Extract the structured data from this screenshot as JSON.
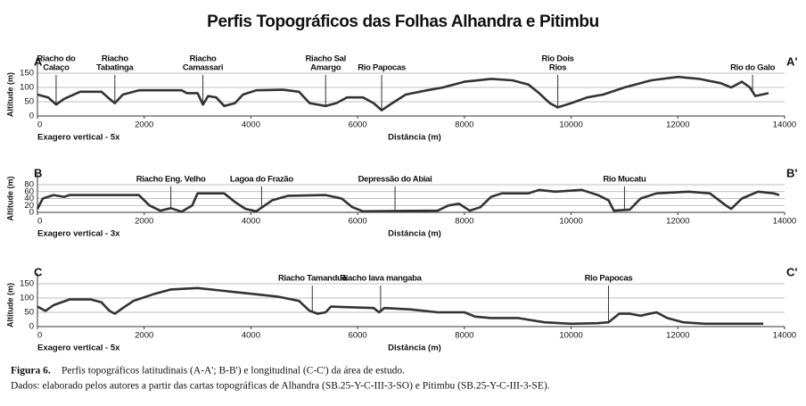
{
  "title": "Perfis Topográficos das Folhas Alhandra e Pitimbu",
  "caption": {
    "label": "Figura 6.",
    "text": "Perfis topográficos latitudinais (A-A'; B-B') e longitudinal (C-C') da área de estudo.",
    "source": "Dados: elaborado pelos autores a partir das cartas topográficas de Alhandra (SB.25-Y-C-III-3-SO) e Pitimbu (SB.25-Y-C-III-3-SE)."
  },
  "chart_data": [
    {
      "type": "line",
      "start_label": "A",
      "end_label": "A'",
      "ylabel": "Altitude (m)",
      "xlabel": "Distância (m)",
      "note": "Exagero vertical - 5x",
      "x": [
        0,
        200,
        350,
        500,
        800,
        1200,
        1350,
        1450,
        1600,
        1900,
        2700,
        2800,
        3000,
        3100,
        3200,
        3350,
        3500,
        3700,
        3850,
        4100,
        4600,
        4900,
        5100,
        5400,
        5600,
        5800,
        6100,
        6300,
        6450,
        6650,
        6900,
        7300,
        7600,
        8000,
        8500,
        8900,
        9200,
        9400,
        9600,
        9750,
        10000,
        10300,
        10600,
        11000,
        11500,
        12000,
        12400,
        12800,
        13000,
        13200,
        13350,
        13450,
        13700
      ],
      "series": [
        {
          "color": "#333333",
          "values": [
            75,
            65,
            40,
            60,
            85,
            85,
            60,
            45,
            75,
            90,
            90,
            80,
            80,
            40,
            70,
            65,
            35,
            45,
            75,
            90,
            92,
            85,
            45,
            35,
            45,
            65,
            65,
            45,
            20,
            45,
            75,
            90,
            100,
            120,
            130,
            125,
            110,
            80,
            45,
            30,
            45,
            65,
            75,
            100,
            125,
            137,
            130,
            115,
            100,
            120,
            100,
            70,
            80
          ]
        }
      ],
      "xlim": [
        0,
        14000
      ],
      "xticks": [
        0,
        2000,
        4000,
        6000,
        8000,
        10000,
        12000,
        14000
      ],
      "ylim": [
        0,
        150
      ],
      "yticks": [
        0,
        50,
        100,
        150
      ],
      "grid": true,
      "annotations": [
        {
          "text": [
            "Riacho do",
            "Calaço"
          ],
          "x": 350
        },
        {
          "text": [
            "Riacho",
            "Tabatinga"
          ],
          "x": 1450
        },
        {
          "text": [
            "Riacho",
            "Camassari"
          ],
          "x": 3100
        },
        {
          "text": [
            "Riacho Sal",
            "Amargo"
          ],
          "x": 5400
        },
        {
          "text": [
            "Rio Papocas"
          ],
          "x": 6450
        },
        {
          "text": [
            "Rio Dois",
            "Rios"
          ],
          "x": 9750
        },
        {
          "text": [
            "Rio do Galo"
          ],
          "x": 13400
        }
      ]
    },
    {
      "type": "line",
      "start_label": "B",
      "end_label": "B'",
      "ylabel": "Altitude (m)",
      "xlabel": "Distância (m)",
      "note": "Exagero vertical - 3x",
      "x": [
        0,
        100,
        300,
        500,
        600,
        1900,
        2100,
        2300,
        2500,
        2700,
        2900,
        3000,
        3500,
        3700,
        3900,
        4100,
        4400,
        4700,
        5400,
        5700,
        5900,
        6100,
        7500,
        7700,
        7900,
        8100,
        8300,
        8500,
        8700,
        9200,
        9400,
        9700,
        10200,
        10500,
        10700,
        10800,
        11100,
        11300,
        11600,
        12200,
        12600,
        12900,
        13000,
        13200,
        13500,
        13800,
        13900
      ],
      "series": [
        {
          "color": "#333333",
          "values": [
            10,
            40,
            50,
            45,
            50,
            50,
            20,
            5,
            12,
            2,
            20,
            55,
            55,
            30,
            10,
            3,
            35,
            48,
            50,
            40,
            15,
            3,
            5,
            20,
            25,
            5,
            15,
            45,
            55,
            55,
            65,
            60,
            65,
            50,
            35,
            5,
            8,
            40,
            55,
            60,
            55,
            20,
            10,
            40,
            60,
            55,
            50
          ]
        }
      ],
      "xlim": [
        0,
        14000
      ],
      "xticks": [
        0,
        2000,
        4000,
        6000,
        8000,
        10000,
        12000,
        14000
      ],
      "ylim": [
        0,
        80
      ],
      "yticks": [
        0,
        20,
        40,
        60,
        80
      ],
      "grid": true,
      "annotations": [
        {
          "text": [
            "Riacho Eng. Velho"
          ],
          "x": 2500
        },
        {
          "text": [
            "Lagoa do Frazão"
          ],
          "x": 4200
        },
        {
          "text": [
            "Depressão do Abiai"
          ],
          "x": 6700
        },
        {
          "text": [
            "Rio Mucatu"
          ],
          "x": 11000
        }
      ]
    },
    {
      "type": "line",
      "start_label": "C",
      "end_label": "C'",
      "ylabel": "Altitude (m)",
      "xlabel": "Distância (m)",
      "note": "Exagero vertical - 5x",
      "x": [
        0,
        150,
        300,
        600,
        1000,
        1200,
        1350,
        1450,
        1600,
        1800,
        2200,
        2500,
        3000,
        3500,
        4000,
        4500,
        4900,
        5100,
        5250,
        5400,
        5500,
        6300,
        6400,
        6500,
        7000,
        7500,
        8000,
        8200,
        8500,
        9000,
        9500,
        10000,
        10500,
        10700,
        10900,
        11100,
        11300,
        11600,
        11800,
        12100,
        12500,
        13000,
        13600
      ],
      "series": [
        {
          "color": "#333333",
          "values": [
            70,
            55,
            75,
            95,
            95,
            85,
            55,
            45,
            65,
            90,
            115,
            130,
            135,
            125,
            115,
            105,
            90,
            55,
            45,
            50,
            70,
            65,
            50,
            65,
            60,
            50,
            50,
            35,
            30,
            30,
            15,
            10,
            12,
            15,
            45,
            45,
            38,
            50,
            30,
            15,
            10,
            10,
            10
          ]
        }
      ],
      "xlim": [
        0,
        14000
      ],
      "xticks": [
        0,
        2000,
        4000,
        6000,
        8000,
        10000,
        12000,
        14000
      ],
      "ylim": [
        0,
        150
      ],
      "yticks": [
        0,
        50,
        100,
        150
      ],
      "grid": true,
      "annotations": [
        {
          "text": [
            "Riacho Tamanduá"
          ],
          "x": 5150
        },
        {
          "text": [
            "Riacho Iava mangaba"
          ],
          "x": 6430
        },
        {
          "text": [
            "Rio Papocas"
          ],
          "x": 10700
        }
      ]
    }
  ]
}
